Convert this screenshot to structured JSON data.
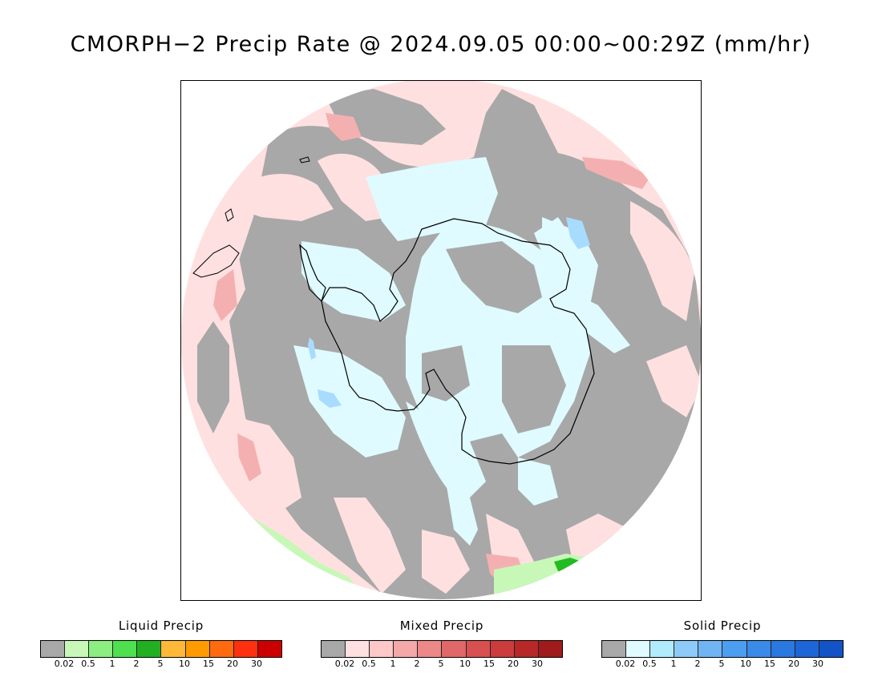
{
  "title": "CMORPH−2 Precip Rate @ 2024.09.05 00:00~00:29Z (mm/hr)",
  "map": {
    "projection": "south-polar-stereographic",
    "colors": {
      "no_data": "#ffffff",
      "trace": "#a8a8a8",
      "mixed_light": "#ffe0e0",
      "mixed_mid": "#f4b0b0",
      "mixed_heavy": "#e07070",
      "solid_light": "#dffbff",
      "solid_mid": "#a8dcff",
      "solid_heavy": "#88c0f0",
      "liquid_light": "#c8f8b8",
      "liquid_mid": "#88ee78",
      "liquid_heavy": "#22bb22",
      "coastline": "#000000"
    }
  },
  "legends": [
    {
      "name": "Liquid Precip",
      "ticks": [
        "0.02",
        "0.5",
        "1",
        "2",
        "5",
        "10",
        "15",
        "20",
        "30"
      ],
      "colors": [
        "#a8a8a8",
        "#c8f8b8",
        "#8cee80",
        "#4ee04e",
        "#22b022",
        "#ffb838",
        "#ff9a00",
        "#ff6a10",
        "#ff3010",
        "#cc0000"
      ]
    },
    {
      "name": "Mixed Precip",
      "ticks": [
        "0.02",
        "0.5",
        "1",
        "2",
        "5",
        "10",
        "15",
        "20",
        "30"
      ],
      "colors": [
        "#a8a8a8",
        "#ffe0e0",
        "#fcc8c8",
        "#f4a8a8",
        "#ec8888",
        "#e06868",
        "#d85050",
        "#cc3c3c",
        "#b82828",
        "#a01c1c"
      ]
    },
    {
      "name": "Solid Precip",
      "ticks": [
        "0.02",
        "0.5",
        "1",
        "2",
        "5",
        "10",
        "15",
        "20",
        "30"
      ],
      "colors": [
        "#a8a8a8",
        "#dffbff",
        "#b0ecfc",
        "#8ccaf8",
        "#70b4f4",
        "#4c9ef0",
        "#3a8ae8",
        "#2a78e0",
        "#1e66d8",
        "#1254c8"
      ]
    }
  ]
}
